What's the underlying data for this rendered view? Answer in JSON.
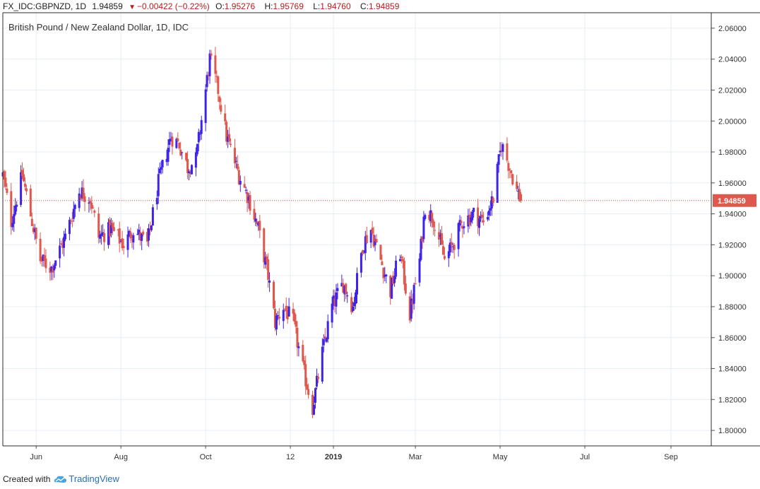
{
  "header": {
    "symbol": "FX_IDC:GBPNZD, 1D",
    "last": "1.94859",
    "change": "−0.00422 (−0.22%)",
    "o_label": "O:",
    "o_val": "1.95276",
    "h_label": "H:",
    "h_val": "1.95769",
    "l_label": "L:",
    "l_val": "1.94760",
    "c_label": "C:",
    "c_val": "1.94859"
  },
  "footer": {
    "created_with": "Created with",
    "brand": "TradingView"
  },
  "colors": {
    "up": "#3d24e8",
    "down": "#e0584d",
    "grid": "#e6edf3",
    "price_line": "#d9534f",
    "price_badge": "#e0584d"
  },
  "chart_data": {
    "type": "candlestick",
    "title": "British Pound / New Zealand Dollar, 1D, IDC",
    "ylim": [
      1.79,
      2.07
    ],
    "y_ticks": [
      "2.06000",
      "2.04000",
      "2.02000",
      "2.00000",
      "1.98000",
      "1.96000",
      "1.94000",
      "1.92000",
      "1.90000",
      "1.88000",
      "1.86000",
      "1.84000",
      "1.82000",
      "1.80000"
    ],
    "x_tick_labels": [
      "Jun",
      "Aug",
      "Oct",
      "12",
      "2019",
      "Mar",
      "May",
      "Jul",
      "Sep"
    ],
    "x_range": [
      "2018-05-08",
      "2019-09-30"
    ],
    "last_price": 1.94859,
    "last_price_label": "1.94859",
    "anchors": [
      [
        "2018-05-08",
        1.965
      ],
      [
        "2018-05-14",
        1.935
      ],
      [
        "2018-05-22",
        1.965
      ],
      [
        "2018-05-29",
        1.935
      ],
      [
        "2018-06-04",
        1.91
      ],
      [
        "2018-06-12",
        1.905
      ],
      [
        "2018-06-22",
        1.925
      ],
      [
        "2018-07-02",
        1.955
      ],
      [
        "2018-07-10",
        1.95
      ],
      [
        "2018-07-16",
        1.925
      ],
      [
        "2018-07-25",
        1.93
      ],
      [
        "2018-08-03",
        1.92
      ],
      [
        "2018-08-10",
        1.93
      ],
      [
        "2018-08-20",
        1.92
      ],
      [
        "2018-08-28",
        1.96
      ],
      [
        "2018-09-06",
        1.99
      ],
      [
        "2018-09-12",
        1.985
      ],
      [
        "2018-09-18",
        1.97
      ],
      [
        "2018-09-24",
        1.975
      ],
      [
        "2018-10-01",
        2.02
      ],
      [
        "2018-10-04",
        2.04
      ],
      [
        "2018-10-10",
        2.02
      ],
      [
        "2018-10-16",
        1.99
      ],
      [
        "2018-10-25",
        1.965
      ],
      [
        "2018-11-01",
        1.95
      ],
      [
        "2018-11-08",
        1.93
      ],
      [
        "2018-11-15",
        1.9
      ],
      [
        "2018-11-20",
        1.87
      ],
      [
        "2018-11-26",
        1.88
      ],
      [
        "2018-12-03",
        1.87
      ],
      [
        "2018-12-10",
        1.84
      ],
      [
        "2018-12-17",
        1.815
      ],
      [
        "2018-12-24",
        1.85
      ],
      [
        "2018-12-31",
        1.88
      ],
      [
        "2019-01-08",
        1.895
      ],
      [
        "2019-01-15",
        1.88
      ],
      [
        "2019-01-22",
        1.92
      ],
      [
        "2019-01-28",
        1.93
      ],
      [
        "2019-02-04",
        1.91
      ],
      [
        "2019-02-11",
        1.89
      ],
      [
        "2019-02-18",
        1.915
      ],
      [
        "2019-02-25",
        1.875
      ],
      [
        "2019-03-04",
        1.91
      ],
      [
        "2019-03-08",
        1.945
      ],
      [
        "2019-03-15",
        1.935
      ],
      [
        "2019-03-22",
        1.91
      ],
      [
        "2019-03-28",
        1.92
      ],
      [
        "2019-04-04",
        1.935
      ],
      [
        "2019-04-12",
        1.94
      ],
      [
        "2019-04-19",
        1.935
      ],
      [
        "2019-04-26",
        1.95
      ],
      [
        "2019-05-02",
        1.985
      ],
      [
        "2019-05-08",
        1.97
      ],
      [
        "2019-05-13",
        1.955
      ],
      [
        "2019-05-16",
        1.9486
      ]
    ]
  }
}
